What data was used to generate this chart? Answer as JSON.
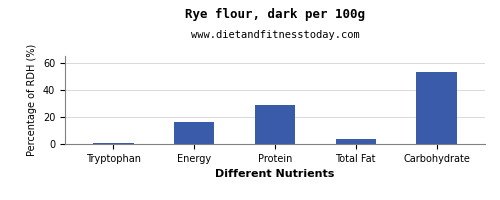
{
  "title": "Rye flour, dark per 100g",
  "subtitle": "www.dietandfitnesstoday.com",
  "xlabel": "Different Nutrients",
  "ylabel": "Percentage of RDH (%)",
  "categories": [
    "Tryptophan",
    "Energy",
    "Protein",
    "Total Fat",
    "Carbohydrate"
  ],
  "values": [
    0.5,
    16,
    28.5,
    3.5,
    53
  ],
  "bar_color": "#3a5aaa",
  "ylim": [
    0,
    65
  ],
  "yticks": [
    0,
    20,
    40,
    60
  ],
  "background_color": "#ffffff",
  "title_fontsize": 9,
  "subtitle_fontsize": 7.5,
  "xlabel_fontsize": 8,
  "ylabel_fontsize": 7,
  "tick_fontsize": 7
}
